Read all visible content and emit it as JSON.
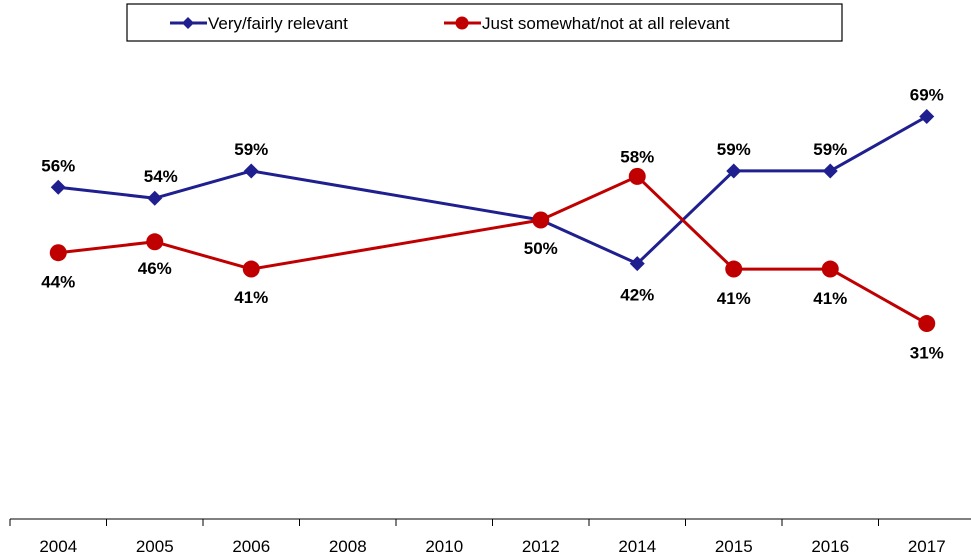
{
  "chart_data": {
    "type": "line",
    "categories": [
      "2004",
      "2005",
      "2006",
      "2008",
      "2010",
      "2012",
      "2014",
      "2015",
      "2016",
      "2017"
    ],
    "series": [
      {
        "name": "Very/fairly relevant",
        "color": "#1F1F8F",
        "marker": "diamond",
        "values": [
          56,
          54,
          59,
          null,
          null,
          50,
          42,
          59,
          59,
          69
        ],
        "labels": [
          "56%",
          "54%",
          "59%",
          "",
          "",
          "",
          "42%",
          "59%",
          "59%",
          "69%"
        ]
      },
      {
        "name": "Just somewhat/not at all relevant",
        "color": "#C00000",
        "marker": "circle",
        "values": [
          44,
          46,
          41,
          null,
          null,
          50,
          58,
          41,
          41,
          31
        ],
        "labels": [
          "44%",
          "46%",
          "41%",
          "",
          "",
          "50%",
          "58%",
          "41%",
          "41%",
          "31%"
        ]
      }
    ],
    "legend_position": "top",
    "grid": false
  }
}
